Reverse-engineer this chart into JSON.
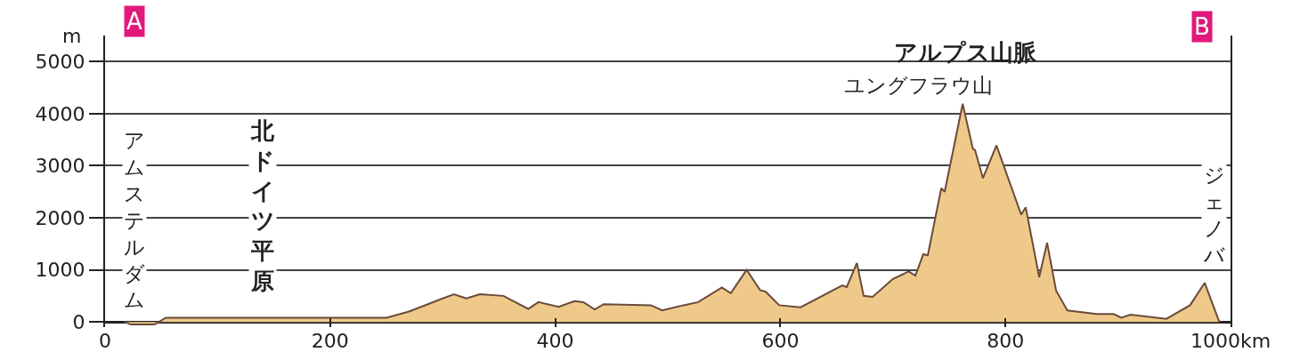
{
  "chart_data": {
    "type": "area",
    "ylabel": "m",
    "x": [
      17,
      23,
      44,
      54,
      60,
      250,
      270,
      300,
      310,
      321,
      333,
      354,
      361,
      376,
      385,
      403,
      417,
      425,
      435,
      443,
      485,
      495,
      514,
      527,
      548,
      556,
      570,
      582,
      587,
      599,
      618,
      655,
      659,
      668,
      674,
      682,
      700,
      714,
      720,
      727,
      731,
      743,
      746,
      762,
      771,
      773,
      780,
      792,
      814,
      818,
      830,
      837,
      845,
      855,
      881,
      896,
      903,
      911,
      943,
      964,
      977,
      990
    ],
    "series": [
      {
        "color": "#6b4a3a",
        "values": [
          0,
          -50,
          -50,
          80,
          80,
          80,
          200,
          450,
          530,
          450,
          530,
          500,
          420,
          250,
          380,
          290,
          400,
          380,
          240,
          340,
          320,
          220,
          320,
          380,
          660,
          550,
          1000,
          610,
          580,
          320,
          280,
          700,
          670,
          1130,
          500,
          480,
          825,
          970,
          890,
          1300,
          1280,
          2570,
          2500,
          4190,
          3330,
          3300,
          2760,
          3390,
          2060,
          2200,
          860,
          1520,
          600,
          220,
          150,
          150,
          80,
          140,
          60,
          320,
          750,
          0
        ]
      }
    ],
    "xlim": [
      0,
      1000
    ],
    "xticks": [
      0,
      200,
      400,
      600,
      800,
      {
        "value": 1000,
        "label": "1000km"
      }
    ],
    "ylim": [
      -100,
      5500
    ],
    "yticks": [
      0,
      1000,
      2000,
      3000,
      4000,
      5000
    ],
    "grid": "y",
    "annotations": [
      {
        "text": "アムステルダム",
        "x": 17,
        "y": 0
      },
      "北ドイツ平原",
      "アルプス山脈",
      {
        "text": "ユングフラウ山",
        "x": 762,
        "y": 4190
      },
      {
        "text": "ジェノバ",
        "x": 990,
        "y": 0
      },
      "A",
      "B"
    ]
  }
}
